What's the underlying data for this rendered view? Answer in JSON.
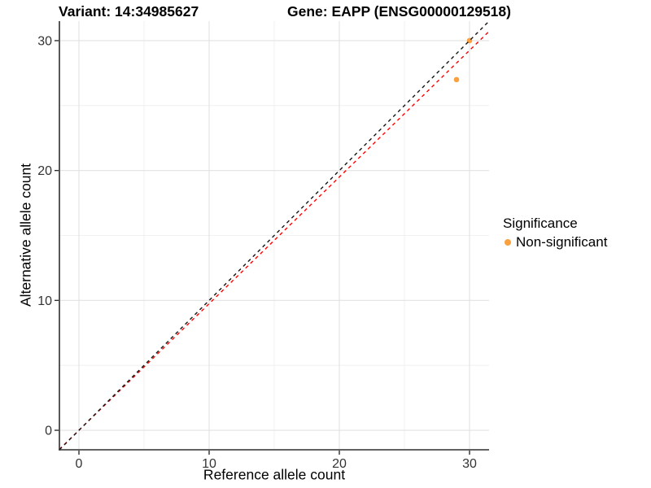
{
  "chart_data": {
    "type": "scatter",
    "title_left": "Variant: 14:34985627",
    "title_right": "Gene: EAPP (ENSG00000129518)",
    "xlabel": "Reference allele count",
    "ylabel": "Alternative allele count",
    "xlim": [
      -1.5,
      31.5
    ],
    "ylim": [
      -1.5,
      31.5
    ],
    "x_major_ticks": [
      0,
      10,
      20,
      30
    ],
    "y_major_ticks": [
      0,
      10,
      20,
      30
    ],
    "x_minor_ticks": [
      5,
      15,
      25
    ],
    "y_minor_ticks": [
      5,
      15,
      25
    ],
    "grid": true,
    "series": [
      {
        "name": "Non-significant",
        "color": "#F9A03F",
        "points": [
          {
            "x": 29,
            "y": 27
          },
          {
            "x": 30,
            "y": 30
          }
        ]
      }
    ],
    "reference_lines": [
      {
        "name": "fitted-line",
        "slope": 0.975,
        "intercept": 0,
        "color": "#FF0000",
        "style": "dashed"
      },
      {
        "name": "identity-line",
        "slope": 1,
        "intercept": 0,
        "color": "#141414",
        "style": "dashed"
      }
    ],
    "legend": {
      "title": "Significance",
      "position": "right",
      "items": [
        {
          "label": "Non-significant",
          "color": "#F9A03F"
        }
      ]
    },
    "theme": {
      "background": "#FFFFFF",
      "grid_major": "#E2E2E2",
      "grid_minor": "#EDEDED",
      "axis_line": "#2E2E2E",
      "tick_label_color": "#333333",
      "point_color": "#F9A03F"
    }
  }
}
